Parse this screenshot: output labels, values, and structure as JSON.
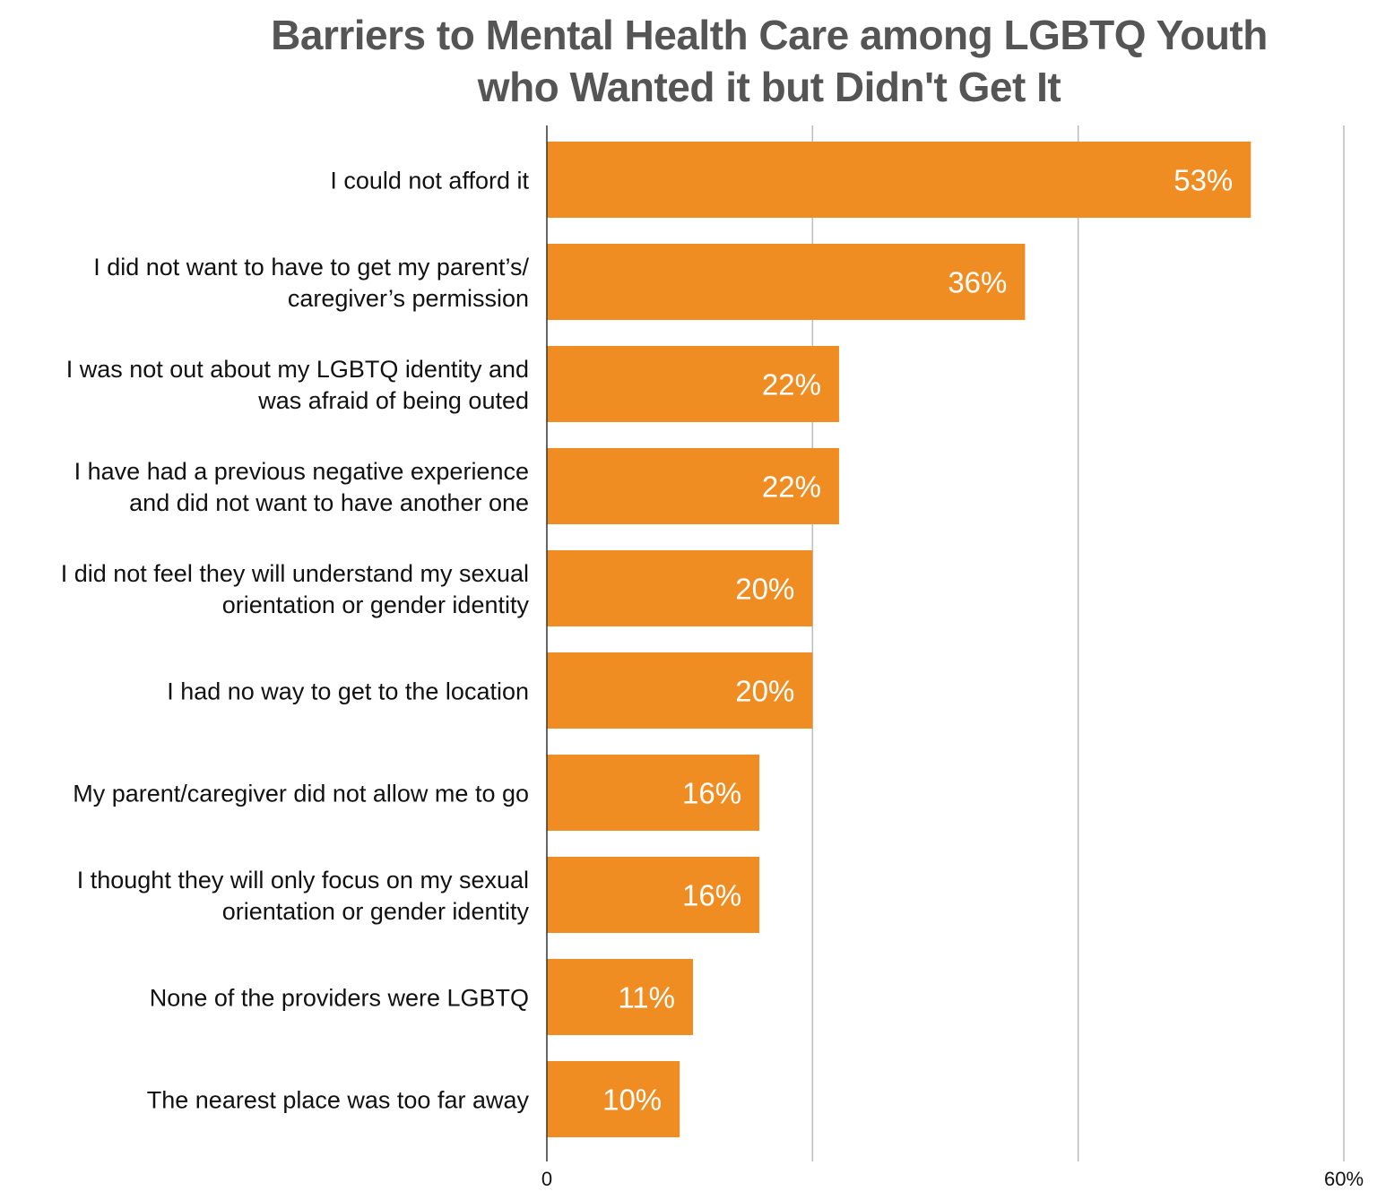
{
  "chart_data": {
    "type": "bar",
    "orientation": "horizontal",
    "title": [
      "Barriers to Mental Health Care among LGBTQ Youth",
      "who Wanted it but Didn't Get It"
    ],
    "categories": [
      [
        "I could not afford it"
      ],
      [
        "I did not want to have to get my parent’s/",
        "caregiver’s permission"
      ],
      [
        "I was not out about my LGBTQ identity and",
        "was afraid of being outed"
      ],
      [
        "I have had a previous negative experience",
        "and did not want to have another one"
      ],
      [
        "I did not feel they will understand my sexual",
        "orientation or gender identity"
      ],
      [
        "I had no way to get to the location"
      ],
      [
        "My parent/caregiver did not allow me to go"
      ],
      [
        "I thought they will only focus on my sexual",
        "orientation or gender identity"
      ],
      [
        "None of the providers were LGBTQ"
      ],
      [
        "The nearest place was too far away"
      ]
    ],
    "values": [
      53,
      36,
      22,
      22,
      20,
      20,
      16,
      16,
      11,
      10
    ],
    "data_labels": [
      "53%",
      "36%",
      "22%",
      "22%",
      "20%",
      "20%",
      "16%",
      "16%",
      "11%",
      "10%"
    ],
    "xlim": [
      0,
      60
    ],
    "gridlines": [
      20,
      40,
      60
    ],
    "tick_labels": [
      "0",
      "60%"
    ],
    "grid": true,
    "bar_color": "#F08D22",
    "title_color": "#555555"
  }
}
